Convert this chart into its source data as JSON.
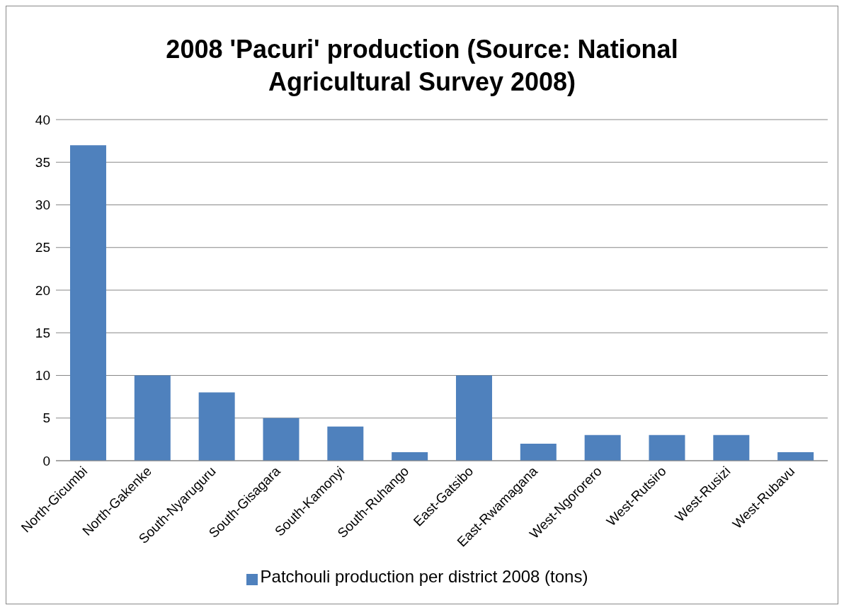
{
  "chart_data": {
    "type": "bar",
    "title": "2008 'Pacuri' production (Source: National Agricultural Survey 2008)",
    "categories": [
      "North-Gicumbi",
      "North-Gakenke",
      "South-Nyaruguru",
      "South-Gisagara",
      "South-Kamonyi",
      "South-Ruhango",
      "East-Gatsibo",
      "East-Rwamagana",
      "West-Ngororero",
      "West-Rutsiro",
      "West-Rusizi",
      "West-Rubavu"
    ],
    "series": [
      {
        "name": "Patchouli production per district 2008 (tons)",
        "color": "#4f81bd",
        "values": [
          37,
          10,
          8,
          5,
          4,
          1,
          10,
          2,
          3,
          3,
          3,
          1
        ]
      }
    ],
    "ylim": [
      0,
      40
    ],
    "yticks": [
      0,
      5,
      10,
      15,
      20,
      25,
      30,
      35,
      40
    ],
    "grid": "y",
    "legend": "bottom"
  }
}
